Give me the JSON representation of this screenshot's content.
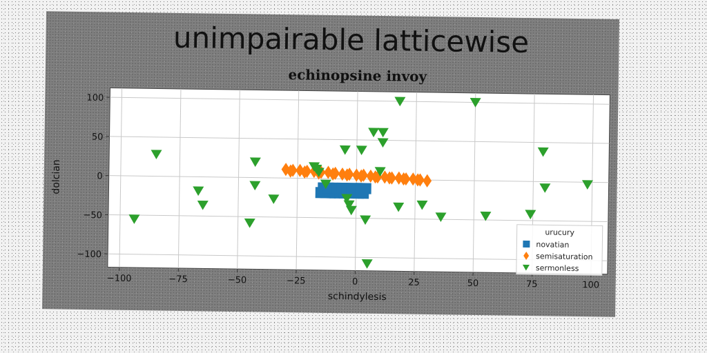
{
  "chart_data": {
    "type": "scatter",
    "suptitle": "unimpairable latticewise",
    "title": "echinopsine invoy",
    "xlabel": "schindylesis",
    "ylabel": "dolcian",
    "xlim": [
      -105,
      107
    ],
    "ylim": [
      -117,
      112
    ],
    "xticks": [
      -100,
      -75,
      -50,
      -25,
      0,
      25,
      50,
      75,
      100
    ],
    "yticks": [
      -100,
      -50,
      0,
      50,
      100
    ],
    "xtick_labels": [
      "−100",
      "−75",
      "−50",
      "−25",
      "0",
      "25",
      "50",
      "75",
      "100"
    ],
    "ytick_labels": [
      "−100",
      "−50",
      "0",
      "50",
      "100"
    ],
    "grid": true,
    "legend": {
      "title": "urucury",
      "position": "lower-right"
    },
    "colors": {
      "novatian": "#1f77b4",
      "semisaturation": "#ff7f0e",
      "sermonless": "#2ca02c"
    },
    "series": [
      {
        "name": "novatian",
        "marker": "square",
        "x": [
          -15,
          -13,
          -11,
          -9,
          -7,
          -5,
          -3,
          -1,
          1,
          3,
          -14,
          -12,
          -10,
          -8,
          -6,
          -4,
          -2,
          0,
          2,
          4
        ],
        "y": [
          -18,
          -18,
          -18,
          -18,
          -18,
          -18,
          -18,
          -18,
          -18,
          -18,
          -12,
          -12,
          -12,
          -12,
          -12,
          -12,
          -12,
          -12,
          -12,
          -12
        ]
      },
      {
        "name": "semisaturation",
        "marker": "diamond",
        "x": [
          -30,
          -27,
          -24,
          -21,
          -18,
          -15,
          -12,
          -9,
          -6,
          -3,
          0,
          3,
          6,
          9,
          12,
          15,
          18,
          21,
          24,
          27,
          30,
          -28,
          -22,
          -16,
          -10,
          -4,
          2,
          8,
          14,
          20,
          26
        ],
        "y": [
          11,
          10,
          10,
          9,
          9,
          8,
          8,
          7,
          6,
          6,
          5,
          5,
          4,
          3,
          3,
          2,
          2,
          1,
          1,
          0,
          -1,
          9,
          8,
          7,
          6,
          5,
          4,
          3,
          2,
          1,
          0
        ]
      },
      {
        "name": "sermonless",
        "marker": "triangle-down",
        "x": [
          -94,
          -85,
          -67,
          -65,
          -45,
          -43,
          -43,
          -35,
          -18,
          -17,
          -16,
          -13,
          -5,
          -4,
          -3,
          -2,
          2,
          4,
          5,
          10,
          11,
          11,
          18,
          18,
          28,
          36,
          50,
          55,
          74,
          79,
          80,
          98,
          7
        ],
        "y": [
          -55,
          28,
          -18,
          -36,
          -58,
          20,
          -10,
          -27,
          15,
          12,
          8,
          -7,
          37,
          -25,
          -33,
          -40,
          37,
          -52,
          -108,
          10,
          47,
          60,
          100,
          -35,
          -32,
          -47,
          100,
          -45,
          -42,
          38,
          -8,
          -3,
          60
        ]
      }
    ]
  }
}
